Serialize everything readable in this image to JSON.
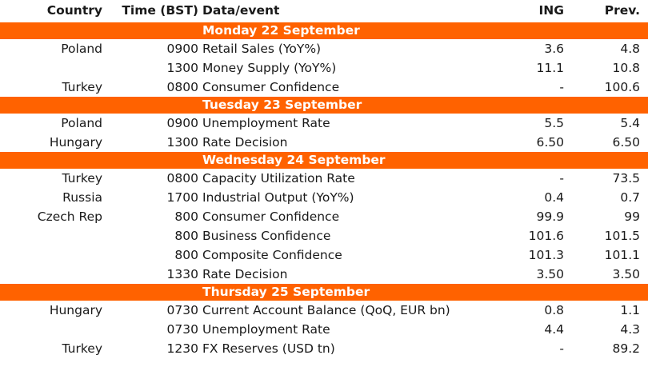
{
  "headers": {
    "country": "Country",
    "time": "Time (BST)",
    "event": "Data/event",
    "ing": "ING",
    "prev": "Prev."
  },
  "days": [
    {
      "label": "Monday 22 September",
      "rows": [
        {
          "country": "Poland",
          "time": "0900",
          "event": "Retail Sales (YoY%)",
          "ing": "3.6",
          "prev": "4.8"
        },
        {
          "country": "",
          "time": "1300",
          "event": "Money Supply (YoY%)",
          "ing": "11.1",
          "prev": "10.8"
        },
        {
          "country": "Turkey",
          "time": "0800",
          "event": "Consumer Confidence",
          "ing": "-",
          "prev": "100.6"
        }
      ]
    },
    {
      "label": "Tuesday 23 September",
      "rows": [
        {
          "country": "Poland",
          "time": "0900",
          "event": "Unemployment Rate",
          "ing": "5.5",
          "prev": "5.4"
        },
        {
          "country": "Hungary",
          "time": "1300",
          "event": "Rate Decision",
          "ing": "6.50",
          "prev": "6.50"
        }
      ]
    },
    {
      "label": "Wednesday 24 September",
      "rows": [
        {
          "country": "Turkey",
          "time": "0800",
          "event": "Capacity Utilization Rate",
          "ing": "-",
          "prev": "73.5"
        },
        {
          "country": "Russia",
          "time": "1700",
          "event": "Industrial Output (YoY%)",
          "ing": "0.4",
          "prev": "0.7"
        },
        {
          "country": "Czech Rep",
          "time": "800",
          "event": "Consumer Confidence",
          "ing": "99.9",
          "prev": "99"
        },
        {
          "country": "",
          "time": "800",
          "event": "Business Confidence",
          "ing": "101.6",
          "prev": "101.5"
        },
        {
          "country": "",
          "time": "800",
          "event": "Composite Confidence",
          "ing": "101.3",
          "prev": "101.1"
        },
        {
          "country": "",
          "time": "1330",
          "event": "Rate Decision",
          "ing": "3.50",
          "prev": "3.50"
        }
      ]
    },
    {
      "label": "Thursday 25 September",
      "rows": [
        {
          "country": "Hungary",
          "time": "0730",
          "event": "Current Account Balance (QoQ, EUR bn)",
          "ing": "0.8",
          "prev": "1.1"
        },
        {
          "country": "",
          "time": "0730",
          "event": "Unemployment Rate",
          "ing": "4.4",
          "prev": "4.3"
        },
        {
          "country": "Turkey",
          "time": "1230",
          "event": "FX Reserves (USD tn)",
          "ing": "-",
          "prev": "89.2"
        }
      ]
    }
  ],
  "colors": {
    "accent": "#ff6200",
    "text": "#1a1a1a",
    "day_text": "#ffffff"
  }
}
